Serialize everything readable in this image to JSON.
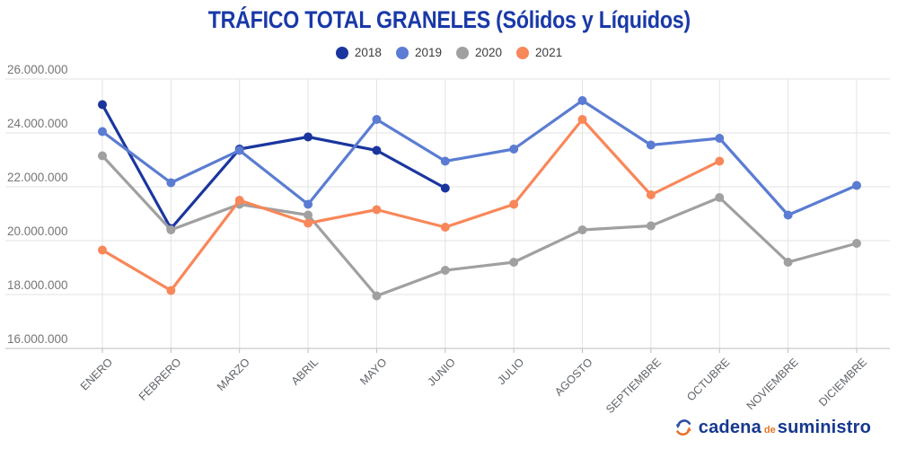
{
  "title": "TRÁFICO TOTAL GRANELES (Sólidos y Líquidos)",
  "chart_data": {
    "type": "line",
    "title": "TRÁFICO TOTAL GRANELES (Sólidos y Líquidos)",
    "categories": [
      "ENERO",
      "FEBRERO",
      "MARZO",
      "ABRIL",
      "MAYO",
      "JUNIO",
      "JULIO",
      "AGOSTO",
      "SEPTIEMBRE",
      "OCTUBRE",
      "NOVIEMBRE",
      "DICIEMBRE"
    ],
    "series": [
      {
        "name": "2018",
        "color": "#1A369E",
        "values": [
          25050000,
          20450000,
          23400000,
          23850000,
          23350000,
          21950000,
          null,
          null,
          null,
          null,
          null,
          null
        ]
      },
      {
        "name": "2019",
        "color": "#5B7CD2",
        "values": [
          24050000,
          22150000,
          23350000,
          21350000,
          24500000,
          22950000,
          23400000,
          25200000,
          23550000,
          23800000,
          20950000,
          22050000
        ]
      },
      {
        "name": "2020",
        "color": "#A0A0A0",
        "values": [
          23150000,
          20400000,
          21350000,
          20950000,
          17950000,
          18900000,
          19200000,
          20400000,
          20550000,
          21600000,
          19200000,
          19900000
        ]
      },
      {
        "name": "2021",
        "color": "#F8875A",
        "values": [
          19650000,
          18150000,
          21500000,
          20650000,
          21150000,
          20500000,
          21350000,
          24500000,
          21700000,
          22950000,
          null,
          null
        ]
      }
    ],
    "xlabel": "",
    "ylabel": "",
    "ylim": [
      16000000,
      26000000
    ],
    "ytick_step": 2000000,
    "ytick_labels": [
      "16.000.000",
      "18.000.000",
      "20.000.000",
      "22.000.000",
      "24.000.000",
      "26.000.000"
    ],
    "grid": true,
    "legend_position": "top",
    "marker": "circle"
  },
  "style_colors": {
    "title": "#1939A8",
    "y_axis_text": "#757575",
    "x_axis_text": "#5F6368",
    "gridline": "#E3E3E3",
    "axis_line": "#C9C9C9",
    "tick": "#BDBDBD",
    "legend_text": "#3c3c3c"
  },
  "footer": {
    "brand": {
      "word1": "cadena",
      "word2": "de",
      "word3": "suministro",
      "color_blue": "#16388F",
      "color_orange": "#E87424"
    }
  }
}
